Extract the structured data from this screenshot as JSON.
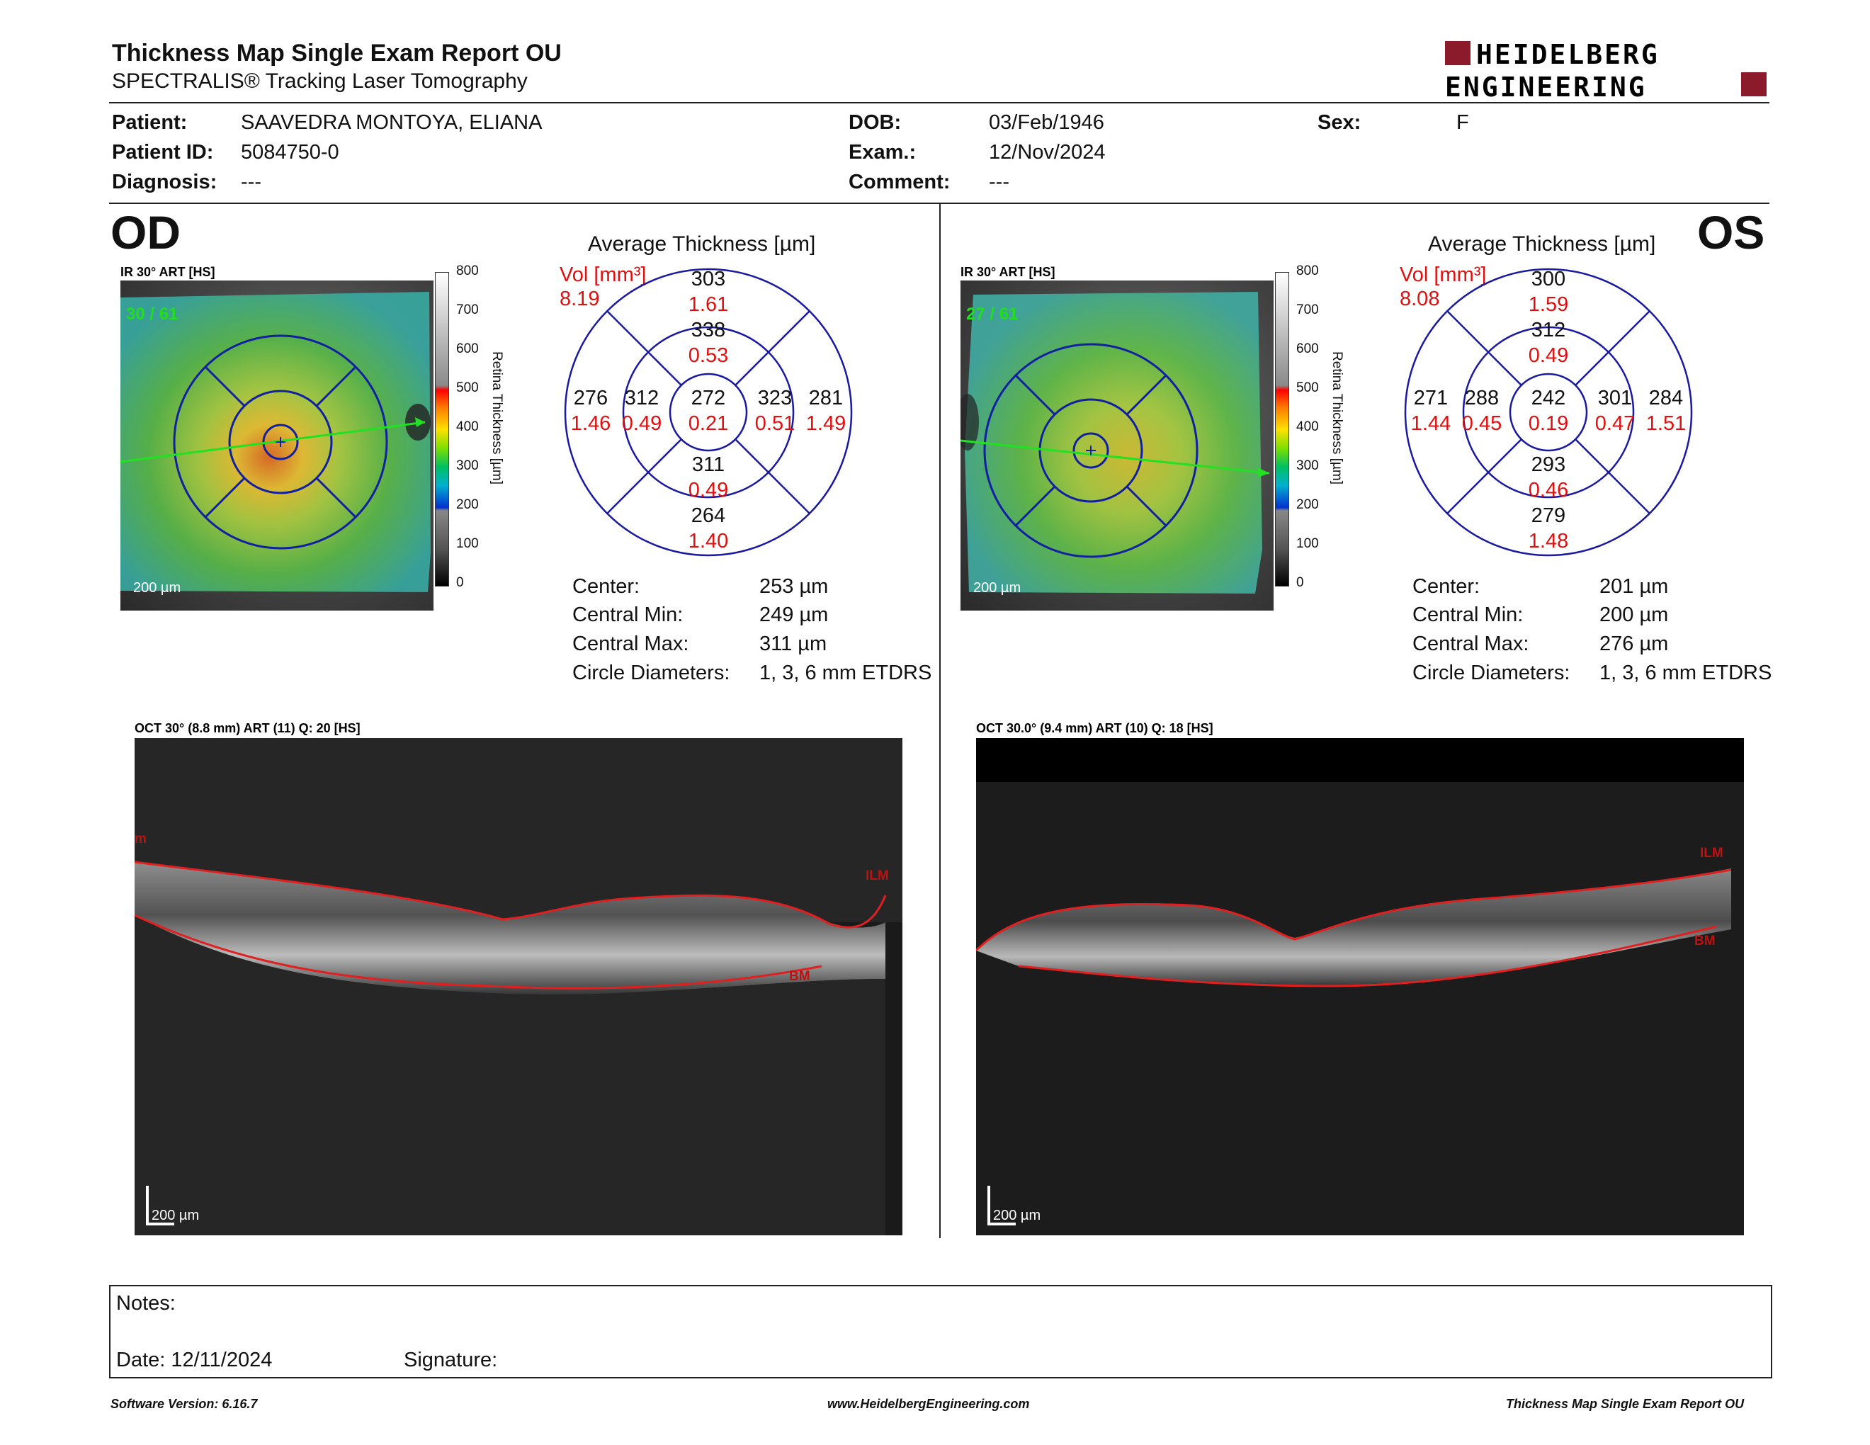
{
  "header": {
    "title": "Thickness Map Single Exam Report OU",
    "subtitle": "SPECTRALIS® Tracking Laser Tomography",
    "logo_line1": "HEIDELBERG",
    "logo_line2": "ENGINEERING",
    "brand_color": "#8b1a2b"
  },
  "patient": {
    "patient_label": "Patient:",
    "patient_value": "SAAVEDRA MONTOYA, ELIANA",
    "id_label": "Patient ID:",
    "id_value": "5084750-0",
    "diagnosis_label": "Diagnosis:",
    "diagnosis_value": "---",
    "dob_label": "DOB:",
    "dob_value": "03/Feb/1946",
    "exam_label": "Exam.:",
    "exam_value": "12/Nov/2024",
    "comment_label": "Comment:",
    "comment_value": "---",
    "sex_label": "Sex:",
    "sex_value": "F"
  },
  "colorscale": {
    "ticks": [
      "800",
      "700",
      "600",
      "500",
      "400",
      "300",
      "200",
      "100",
      "0"
    ],
    "label": "Retina Thickness [µm]"
  },
  "od": {
    "eye_label": "OD",
    "fundus_title": "IR 30° ART [HS]",
    "fundus_count": "30 / 61",
    "fundus_scale": "200 µm",
    "avg_title": "Average Thickness [µm]",
    "vol_label": "Vol [mm³]",
    "vol_value": "8.19",
    "grid": {
      "outer_sup": "303",
      "outer_sup_vol": "1.61",
      "inner_sup": "338",
      "inner_sup_vol": "0.53",
      "outer_nasal_left": "276",
      "outer_nasal_left_vol": "1.46",
      "inner_left": "312",
      "inner_left_vol": "0.49",
      "center": "272",
      "center_vol": "0.21",
      "inner_right": "323",
      "inner_right_vol": "0.51",
      "outer_right": "281",
      "outer_right_vol": "1.49",
      "inner_inf": "311",
      "inner_inf_vol": "0.49",
      "outer_inf": "264",
      "outer_inf_vol": "1.40"
    },
    "stats": {
      "center_label": "Center:",
      "center_value": "253 µm",
      "min_label": "Central Min:",
      "min_value": "249 µm",
      "max_label": "Central Max:",
      "max_value": "311 µm",
      "diam_label": "Circle Diameters:",
      "diam_value": "1, 3, 6 mm ETDRS"
    },
    "oct_title": "OCT 30° (8.8 mm) ART (11) Q: 20 [HS]",
    "oct_scale": "200 µm",
    "ilm_label": "ILM",
    "bm_label": "BM",
    "ilm_partial_label": "m"
  },
  "os": {
    "eye_label": "OS",
    "fundus_title": "IR 30° ART [HS]",
    "fundus_count": "27 / 61",
    "fundus_scale": "200 µm",
    "avg_title": "Average Thickness [µm]",
    "vol_label": "Vol [mm³]",
    "vol_value": "8.08",
    "grid": {
      "outer_sup": "300",
      "outer_sup_vol": "1.59",
      "inner_sup": "312",
      "inner_sup_vol": "0.49",
      "outer_nasal_left": "271",
      "outer_nasal_left_vol": "1.44",
      "inner_left": "288",
      "inner_left_vol": "0.45",
      "center": "242",
      "center_vol": "0.19",
      "inner_right": "301",
      "inner_right_vol": "0.47",
      "outer_right": "284",
      "outer_right_vol": "1.51",
      "inner_inf": "293",
      "inner_inf_vol": "0.46",
      "outer_inf": "279",
      "outer_inf_vol": "1.48"
    },
    "stats": {
      "center_label": "Center:",
      "center_value": "201 µm",
      "min_label": "Central Min:",
      "min_value": "200 µm",
      "max_label": "Central Max:",
      "max_value": "276 µm",
      "diam_label": "Circle Diameters:",
      "diam_value": "1, 3, 6 mm ETDRS"
    },
    "oct_title": "OCT 30.0° (9.4 mm) ART (10) Q: 18 [HS]",
    "oct_scale": "200 µm",
    "ilm_label": "ILM",
    "bm_label": "BM"
  },
  "notes": {
    "notes_label": "Notes:",
    "date_label": "Date: 12/11/2024",
    "signature_label": "Signature:"
  },
  "footer": {
    "software": "Software Version: 6.16.7",
    "website": "www.HeidelbergEngineering.com",
    "report": "Thickness Map Single Exam Report OU"
  }
}
